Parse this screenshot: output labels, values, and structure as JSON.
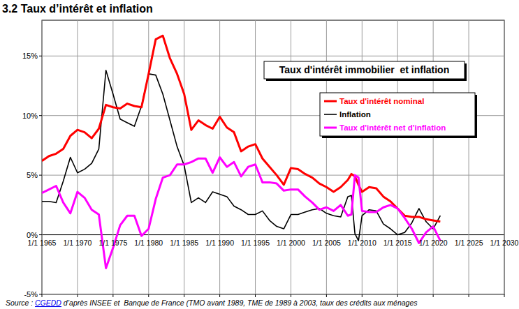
{
  "chart_data": {
    "type": "line",
    "title": "3.2 Taux d’intérêt et inflation",
    "subtitle": "Taux d'intérêt immobilier  et inflation",
    "source_prefix": "Source : ",
    "source_link": "CGEDD",
    "source_text": " d’après INSEE et  Banque de France (TMO avant 1989, TME de 1989 à 2003, taux des crédits aux ménages",
    "x": [
      1965,
      1966,
      1967,
      1968,
      1969,
      1970,
      1971,
      1972,
      1973,
      1974,
      1975,
      1976,
      1977,
      1978,
      1979,
      1980,
      1981,
      1982,
      1983,
      1984,
      1985,
      1986,
      1987,
      1988,
      1989,
      1990,
      1991,
      1992,
      1993,
      1994,
      1995,
      1996,
      1997,
      1998,
      1999,
      2000,
      2001,
      2002,
      2003,
      2004,
      2005,
      2006,
      2007,
      2008,
      2008.5,
      2009,
      2009.5,
      2010,
      2011,
      2012,
      2013,
      2014,
      2015,
      2016,
      2017,
      2018,
      2019,
      2020,
      2021
    ],
    "series": [
      {
        "name": "Taux d'intérêt nominal",
        "color": "#ff0000",
        "values": [
          6.2,
          6.6,
          6.8,
          7.2,
          8.3,
          8.8,
          8.6,
          8.1,
          8.9,
          10.9,
          10.7,
          10.6,
          11.0,
          10.8,
          10.7,
          13.5,
          16.4,
          16.7,
          14.8,
          13.5,
          11.8,
          8.8,
          9.6,
          9.2,
          8.9,
          9.9,
          9.0,
          8.6,
          7.0,
          7.4,
          7.6,
          6.4,
          5.7,
          5.0,
          4.2,
          5.6,
          5.5,
          5.1,
          4.8,
          4.3,
          4.0,
          3.6,
          4.0,
          4.6,
          5.1,
          4.9,
          4.2,
          3.6,
          4.0,
          3.9,
          3.2,
          2.8,
          2.2,
          1.6,
          1.5,
          1.5,
          1.3,
          1.2,
          1.1
        ]
      },
      {
        "name": "Inflation",
        "color": "#000000",
        "values": [
          2.8,
          2.8,
          2.7,
          4.5,
          6.5,
          5.2,
          5.5,
          6.0,
          7.2,
          13.8,
          11.8,
          9.7,
          9.4,
          9.1,
          10.8,
          13.5,
          13.4,
          11.8,
          9.6,
          7.4,
          5.8,
          2.7,
          3.1,
          2.7,
          3.6,
          3.4,
          3.2,
          2.4,
          2.1,
          1.7,
          1.7,
          2.0,
          1.2,
          0.7,
          0.5,
          1.7,
          1.7,
          1.9,
          2.1,
          2.2,
          1.8,
          1.6,
          1.5,
          3.2,
          3.3,
          0.1,
          -0.5,
          1.6,
          2.1,
          2.0,
          0.9,
          0.5,
          0.0,
          0.2,
          1.0,
          2.2,
          1.1,
          0.5,
          1.6
        ]
      },
      {
        "name": "Taux d'intérêt net d'inflation",
        "color": "#ff00ff",
        "values": [
          3.5,
          3.8,
          4.1,
          2.7,
          1.8,
          3.6,
          3.1,
          2.1,
          1.7,
          -2.8,
          -1.1,
          0.8,
          1.6,
          1.6,
          -0.1,
          0.5,
          3.0,
          4.8,
          5.0,
          5.9,
          5.9,
          6.1,
          6.4,
          6.4,
          5.2,
          6.5,
          5.7,
          6.1,
          4.9,
          5.7,
          5.9,
          4.4,
          4.4,
          4.3,
          3.7,
          3.8,
          3.8,
          3.2,
          2.7,
          2.1,
          2.3,
          2.0,
          2.5,
          1.6,
          1.7,
          5.0,
          4.8,
          2.0,
          1.9,
          1.9,
          2.3,
          2.5,
          2.2,
          1.4,
          0.5,
          -0.7,
          0.2,
          0.7,
          -0.5
        ]
      }
    ],
    "xlim": [
      1965,
      2030
    ],
    "xticks": [
      {
        "value": 1965,
        "label": "1/1 1965"
      },
      {
        "value": 1970,
        "label": "1/1 1970"
      },
      {
        "value": 1975,
        "label": "1/1 1975"
      },
      {
        "value": 1980,
        "label": "1/1 1980"
      },
      {
        "value": 1985,
        "label": "1/1 1985"
      },
      {
        "value": 1990,
        "label": "1/1 1990"
      },
      {
        "value": 1995,
        "label": "1/1 1995"
      },
      {
        "value": 2000,
        "label": "1/1 2000"
      },
      {
        "value": 2005,
        "label": "1/1 2005"
      },
      {
        "value": 2010,
        "label": "1/1 2010"
      },
      {
        "value": 2015,
        "label": "1/1 2015"
      },
      {
        "value": 2020,
        "label": "1/1 2020"
      },
      {
        "value": 2025,
        "label": "1/1 2025"
      },
      {
        "value": 2030,
        "label": "1/1 2030"
      }
    ],
    "ylim": [
      -5,
      18
    ],
    "yticks": [
      {
        "value": -5,
        "label": "-5%"
      },
      {
        "value": 0,
        "label": "0%"
      },
      {
        "value": 5,
        "label": "5%"
      },
      {
        "value": 10,
        "label": "10%"
      },
      {
        "value": 15,
        "label": "15%"
      }
    ],
    "grid": true,
    "legend": "upper-right"
  }
}
